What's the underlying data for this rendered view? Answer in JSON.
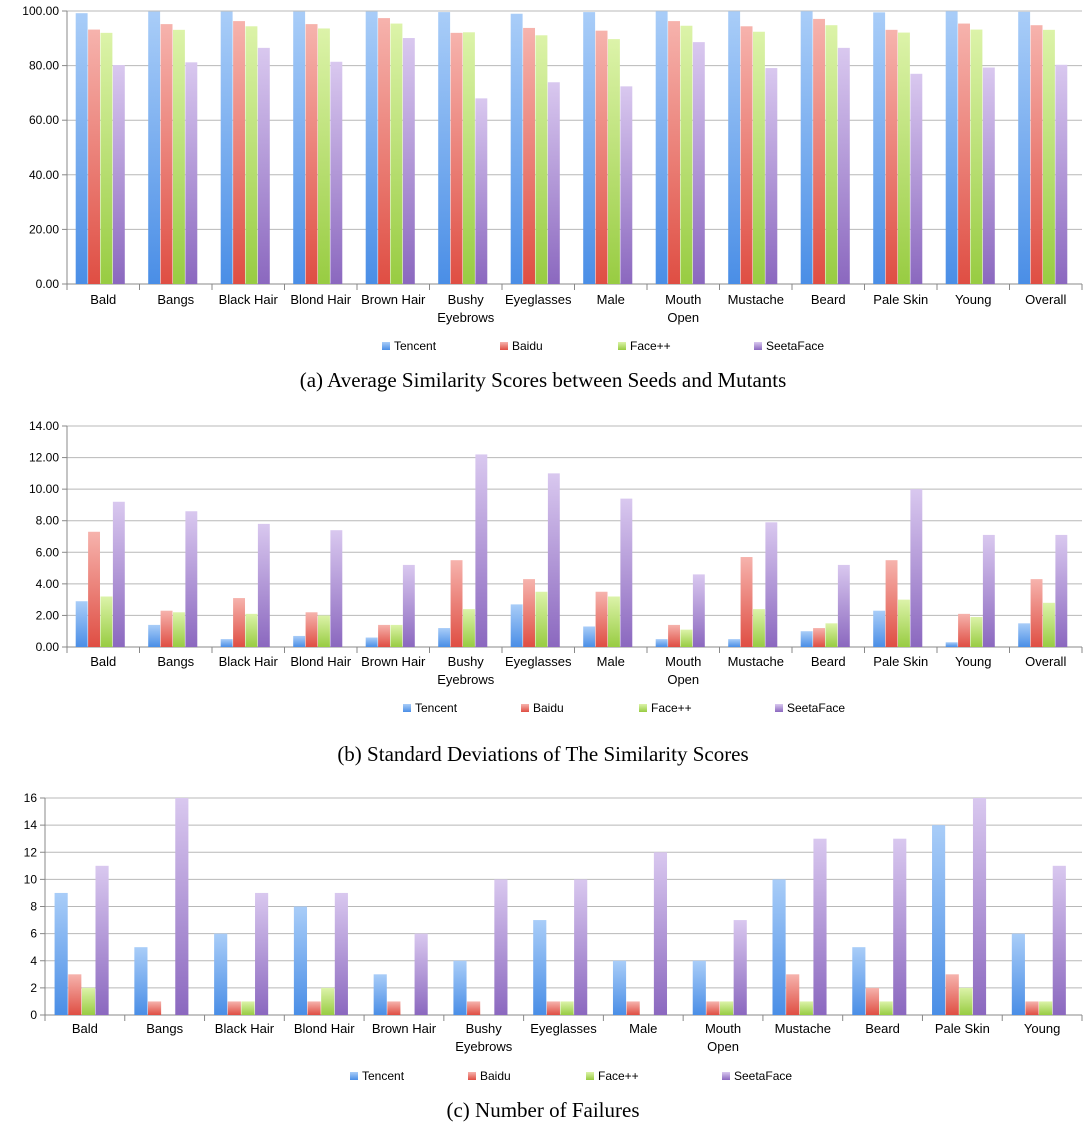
{
  "chart_data": [
    {
      "type": "bar",
      "caption": "(a)  Average Similarity Scores between Seeds and Mutants",
      "categories": [
        "Bald",
        "Bangs",
        "Black Hair",
        "Blond Hair",
        "Brown Hair",
        "Bushy Eyebrows",
        "Eyeglasses",
        "Male",
        "Mouth Open",
        "Mustache",
        "Beard",
        "Pale Skin",
        "Young",
        "Overall"
      ],
      "category_lines": [
        [
          "Bald"
        ],
        [
          "Bangs"
        ],
        [
          "Black Hair"
        ],
        [
          "Blond Hair"
        ],
        [
          "Brown Hair"
        ],
        [
          "Bushy",
          "Eyebrows"
        ],
        [
          "Eyeglasses"
        ],
        [
          "Male"
        ],
        [
          "Mouth",
          "Open"
        ],
        [
          "Mustache"
        ],
        [
          "Beard"
        ],
        [
          "Pale Skin"
        ],
        [
          "Young"
        ],
        [
          "Overall"
        ]
      ],
      "series": [
        {
          "name": "Tencent",
          "values": [
            99.2,
            99.8,
            99.8,
            99.8,
            99.8,
            99.6,
            99.0,
            99.6,
            99.9,
            99.9,
            99.9,
            99.5,
            99.9,
            99.7
          ]
        },
        {
          "name": "Baidu",
          "values": [
            93.2,
            95.2,
            96.3,
            95.2,
            97.4,
            92.0,
            93.8,
            92.8,
            96.3,
            94.4,
            97.1,
            93.1,
            95.4,
            94.8
          ]
        },
        {
          "name": "Face++",
          "values": [
            92.0,
            93.1,
            94.4,
            93.6,
            95.4,
            92.2,
            91.1,
            89.7,
            94.6,
            92.4,
            94.8,
            92.1,
            93.2,
            93.1
          ]
        },
        {
          "name": "SeetaFace",
          "values": [
            80.2,
            81.2,
            86.5,
            81.4,
            90.1,
            68.0,
            73.9,
            72.4,
            88.6,
            79.1,
            86.5,
            77.0,
            79.3,
            80.3
          ]
        }
      ],
      "yticks": [
        "0.00",
        "20.00",
        "40.00",
        "60.00",
        "80.00",
        "100.00"
      ],
      "ylim": [
        0,
        100
      ]
    },
    {
      "type": "bar",
      "caption": "(b)   Standard Deviations of The Similarity Scores",
      "categories": [
        "Bald",
        "Bangs",
        "Black Hair",
        "Blond Hair",
        "Brown Hair",
        "Bushy Eyebrows",
        "Eyeglasses",
        "Male",
        "Mouth Open",
        "Mustache",
        "Beard",
        "Pale Skin",
        "Young",
        "Overall"
      ],
      "category_lines": [
        [
          "Bald"
        ],
        [
          "Bangs"
        ],
        [
          "Black Hair"
        ],
        [
          "Blond Hair"
        ],
        [
          "Brown Hair"
        ],
        [
          "Bushy",
          "Eyebrows"
        ],
        [
          "Eyeglasses"
        ],
        [
          "Male"
        ],
        [
          "Mouth",
          "Open"
        ],
        [
          "Mustache"
        ],
        [
          "Beard"
        ],
        [
          "Pale Skin"
        ],
        [
          "Young"
        ],
        [
          "Overall"
        ]
      ],
      "series": [
        {
          "name": "Tencent",
          "values": [
            2.9,
            1.4,
            0.5,
            0.7,
            0.6,
            1.2,
            2.7,
            1.3,
            0.5,
            0.5,
            1.0,
            2.3,
            0.3,
            1.5
          ]
        },
        {
          "name": "Baidu",
          "values": [
            7.3,
            2.3,
            3.1,
            2.2,
            1.4,
            5.5,
            4.3,
            3.5,
            1.4,
            5.7,
            1.2,
            5.5,
            2.1,
            4.3
          ]
        },
        {
          "name": "Face++",
          "values": [
            3.2,
            2.2,
            2.1,
            2.0,
            1.4,
            2.4,
            3.5,
            3.2,
            1.1,
            2.4,
            1.5,
            3.0,
            1.9,
            2.8
          ]
        },
        {
          "name": "SeetaFace",
          "values": [
            9.2,
            8.6,
            7.8,
            7.4,
            5.2,
            12.2,
            11.0,
            9.4,
            4.6,
            7.9,
            5.2,
            10.0,
            7.1,
            7.1
          ]
        }
      ],
      "yticks": [
        "0.00",
        "2.00",
        "4.00",
        "6.00",
        "8.00",
        "10.00",
        "12.00",
        "14.00"
      ],
      "ylim": [
        0,
        14
      ]
    },
    {
      "type": "bar",
      "caption": "(c) Number of Failures",
      "categories": [
        "Bald",
        "Bangs",
        "Black Hair",
        "Blond Hair",
        "Brown Hair",
        "Bushy Eyebrows",
        "Eyeglasses",
        "Male",
        "Mouth Open",
        "Mustache",
        "Beard",
        "Pale Skin",
        "Young"
      ],
      "category_lines": [
        [
          "Bald"
        ],
        [
          "Bangs"
        ],
        [
          "Black Hair"
        ],
        [
          "Blond Hair"
        ],
        [
          "Brown Hair"
        ],
        [
          "Bushy",
          "Eyebrows"
        ],
        [
          "Eyeglasses"
        ],
        [
          "Male"
        ],
        [
          "Mouth",
          "Open"
        ],
        [
          "Mustache"
        ],
        [
          "Beard"
        ],
        [
          "Pale Skin"
        ],
        [
          "Young"
        ]
      ],
      "series": [
        {
          "name": "Tencent",
          "values": [
            9,
            5,
            6,
            8,
            3,
            4,
            7,
            4,
            4,
            10,
            5,
            14,
            6
          ]
        },
        {
          "name": "Baidu",
          "values": [
            3,
            1,
            1,
            1,
            1,
            1,
            1,
            1,
            1,
            3,
            2,
            3,
            1
          ]
        },
        {
          "name": "Face++",
          "values": [
            2,
            0,
            1,
            2,
            0,
            0,
            1,
            0,
            1,
            1,
            1,
            2,
            1
          ]
        },
        {
          "name": "SeetaFace",
          "values": [
            11,
            16,
            9,
            9,
            6,
            10,
            10,
            12,
            7,
            13,
            13,
            16,
            11
          ]
        }
      ],
      "yticks": [
        "0",
        "2",
        "4",
        "6",
        "8",
        "10",
        "12",
        "14",
        "16"
      ],
      "ylim": [
        0,
        16
      ]
    }
  ],
  "legend": [
    "Tencent",
    "Baidu",
    "Face++",
    "SeetaFace"
  ],
  "series_colors": [
    {
      "light": "#a9cdf8",
      "dark": "#4a8ee6"
    },
    {
      "light": "#f6b3ad",
      "dark": "#df4e43"
    },
    {
      "light": "#dcf3a9",
      "dark": "#98cc42"
    },
    {
      "light": "#d9c8ef",
      "dark": "#8b68bf"
    }
  ]
}
